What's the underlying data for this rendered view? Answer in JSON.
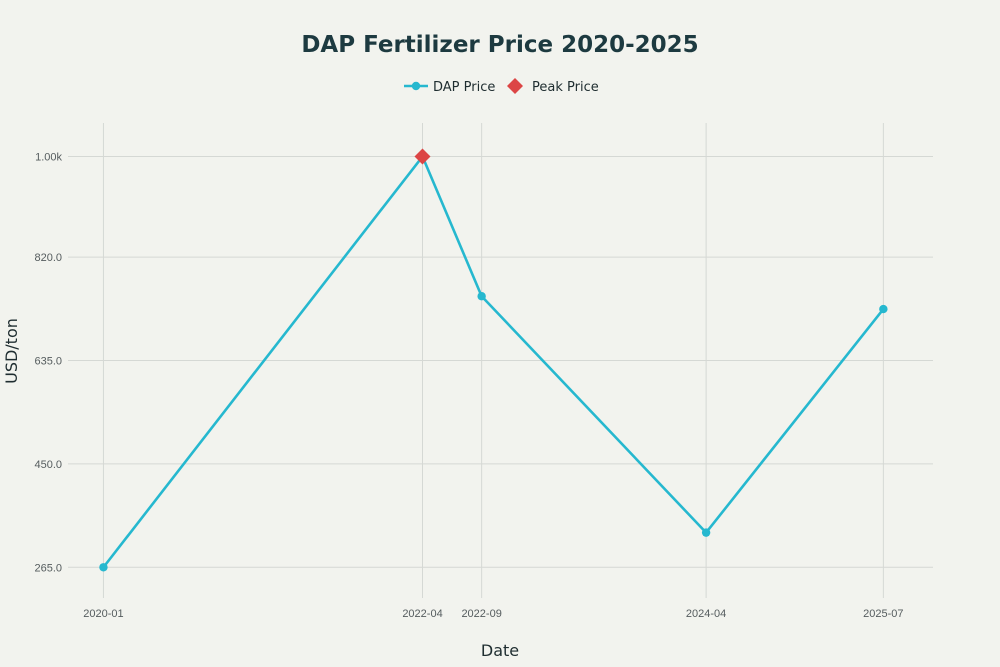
{
  "chart_data": {
    "type": "line",
    "title": "DAP Fertilizer Price 2020-2025",
    "xlabel": "Date",
    "ylabel": "USD/ton",
    "x": [
      "2020-01",
      "2022-04",
      "2022-09",
      "2024-04",
      "2025-07"
    ],
    "x_numeric": [
      2020.0,
      2022.25,
      2022.667,
      2024.25,
      2025.5
    ],
    "xlim": [
      2019.75,
      2025.85
    ],
    "ylim": [
      210,
      1060
    ],
    "y_ticks": [
      265,
      450,
      635,
      820,
      1000
    ],
    "y_tick_labels": [
      "265.0",
      "450.0",
      "635.0",
      "820.0",
      "1.00k"
    ],
    "grid": true,
    "legend_position": "top-center",
    "series": [
      {
        "name": "DAP Price",
        "values": [
          265,
          1000,
          750,
          327,
          727
        ],
        "color": "#26b8cf",
        "marker": "circle"
      },
      {
        "name": "Peak Price",
        "x": [
          "2022-04"
        ],
        "x_numeric": [
          2022.25
        ],
        "values": [
          1000
        ],
        "color": "#dc4545",
        "marker": "diamond"
      }
    ]
  }
}
